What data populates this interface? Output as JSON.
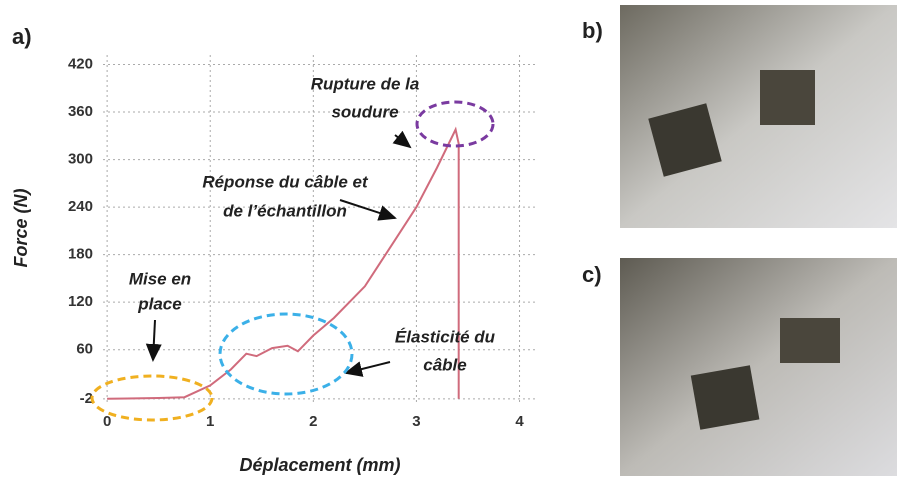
{
  "panel_labels": [
    "a)",
    "b)",
    "c)"
  ],
  "chart_data": {
    "type": "line",
    "xlabel": "Déplacement (mm)",
    "ylabel": "Force (N)",
    "xlim": [
      -0.04,
      4.15
    ],
    "xticks": [
      0,
      1,
      2,
      3,
      4
    ],
    "ylim": [
      -6,
      432
    ],
    "yticks": [
      -2,
      60,
      120,
      180,
      240,
      300,
      360,
      420
    ],
    "grid": true,
    "series": [
      {
        "color": "#d06b7c",
        "x": [
          0,
          0.5,
          0.75,
          1.0,
          1.2,
          1.35,
          1.45,
          1.6,
          1.75,
          1.85,
          2.0,
          2.2,
          2.5,
          2.8,
          3.0,
          3.2,
          3.38,
          3.41,
          3.41
        ],
        "values": [
          -2,
          -1,
          0,
          15,
          35,
          55,
          52,
          62,
          65,
          58,
          78,
          100,
          140,
          200,
          240,
          290,
          338,
          320,
          -2
        ]
      }
    ],
    "annotations": [
      {
        "lines": [
          "Rupture de la",
          "soudure"
        ]
      },
      {
        "lines": [
          "Réponse du câble et",
          "de l’échantillon"
        ]
      },
      {
        "lines": [
          "Mise en",
          "place"
        ]
      },
      {
        "lines": [
          "Élasticité du",
          "câble"
        ]
      }
    ]
  }
}
